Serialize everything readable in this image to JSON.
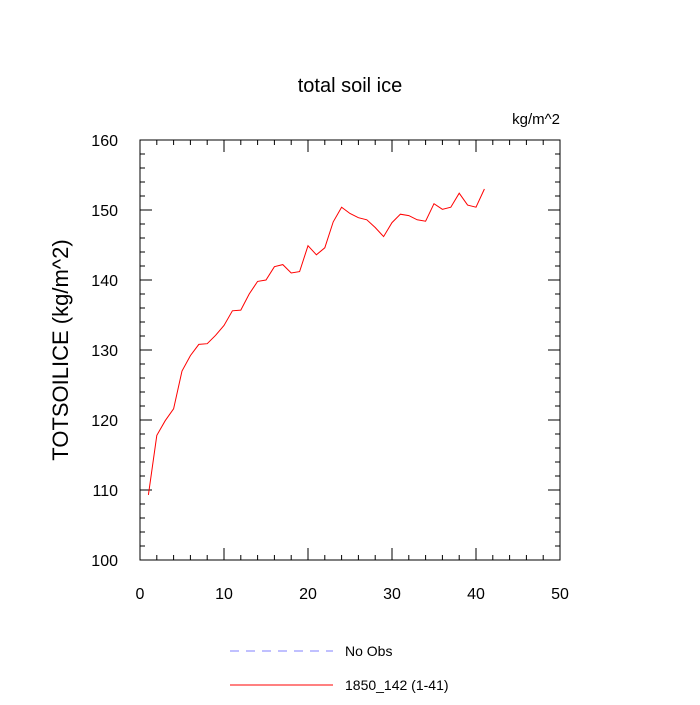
{
  "chart_data": {
    "type": "line",
    "title": "total soil ice",
    "units": "kg/m^2",
    "xlabel": "",
    "ylabel": "TOTSOILICE  (kg/m^2)",
    "xlim": [
      0,
      50
    ],
    "ylim": [
      100,
      160
    ],
    "x_ticks": [
      0,
      10,
      20,
      30,
      40,
      50
    ],
    "y_ticks": [
      100,
      110,
      120,
      130,
      140,
      150,
      160
    ],
    "grid": false,
    "legend_placement": "bottom-center",
    "series": [
      {
        "name": "No Obs",
        "color": "#8080ff",
        "dash": "dashed",
        "x": [],
        "values": []
      },
      {
        "name": "1850_142 (1-41)",
        "color": "#ff0000",
        "dash": "solid",
        "x": [
          1,
          2,
          3,
          4,
          5,
          6,
          7,
          8,
          9,
          10,
          11,
          12,
          13,
          14,
          15,
          16,
          17,
          18,
          19,
          20,
          21,
          22,
          23,
          24,
          25,
          26,
          27,
          28,
          29,
          30,
          31,
          32,
          33,
          34,
          35,
          36,
          37,
          38,
          39,
          40,
          41
        ],
        "values": [
          109.3,
          117.8,
          119.9,
          121.6,
          127.0,
          129.2,
          130.8,
          130.9,
          132.1,
          133.5,
          135.6,
          135.7,
          138.0,
          139.8,
          140.0,
          141.9,
          142.2,
          141.0,
          141.2,
          144.9,
          143.6,
          144.6,
          148.3,
          150.4,
          149.5,
          148.9,
          148.6,
          147.5,
          146.2,
          148.2,
          149.4,
          149.2,
          148.6,
          148.4,
          150.9,
          150.1,
          150.4,
          152.4,
          150.7,
          150.4,
          153.0
        ]
      }
    ]
  }
}
